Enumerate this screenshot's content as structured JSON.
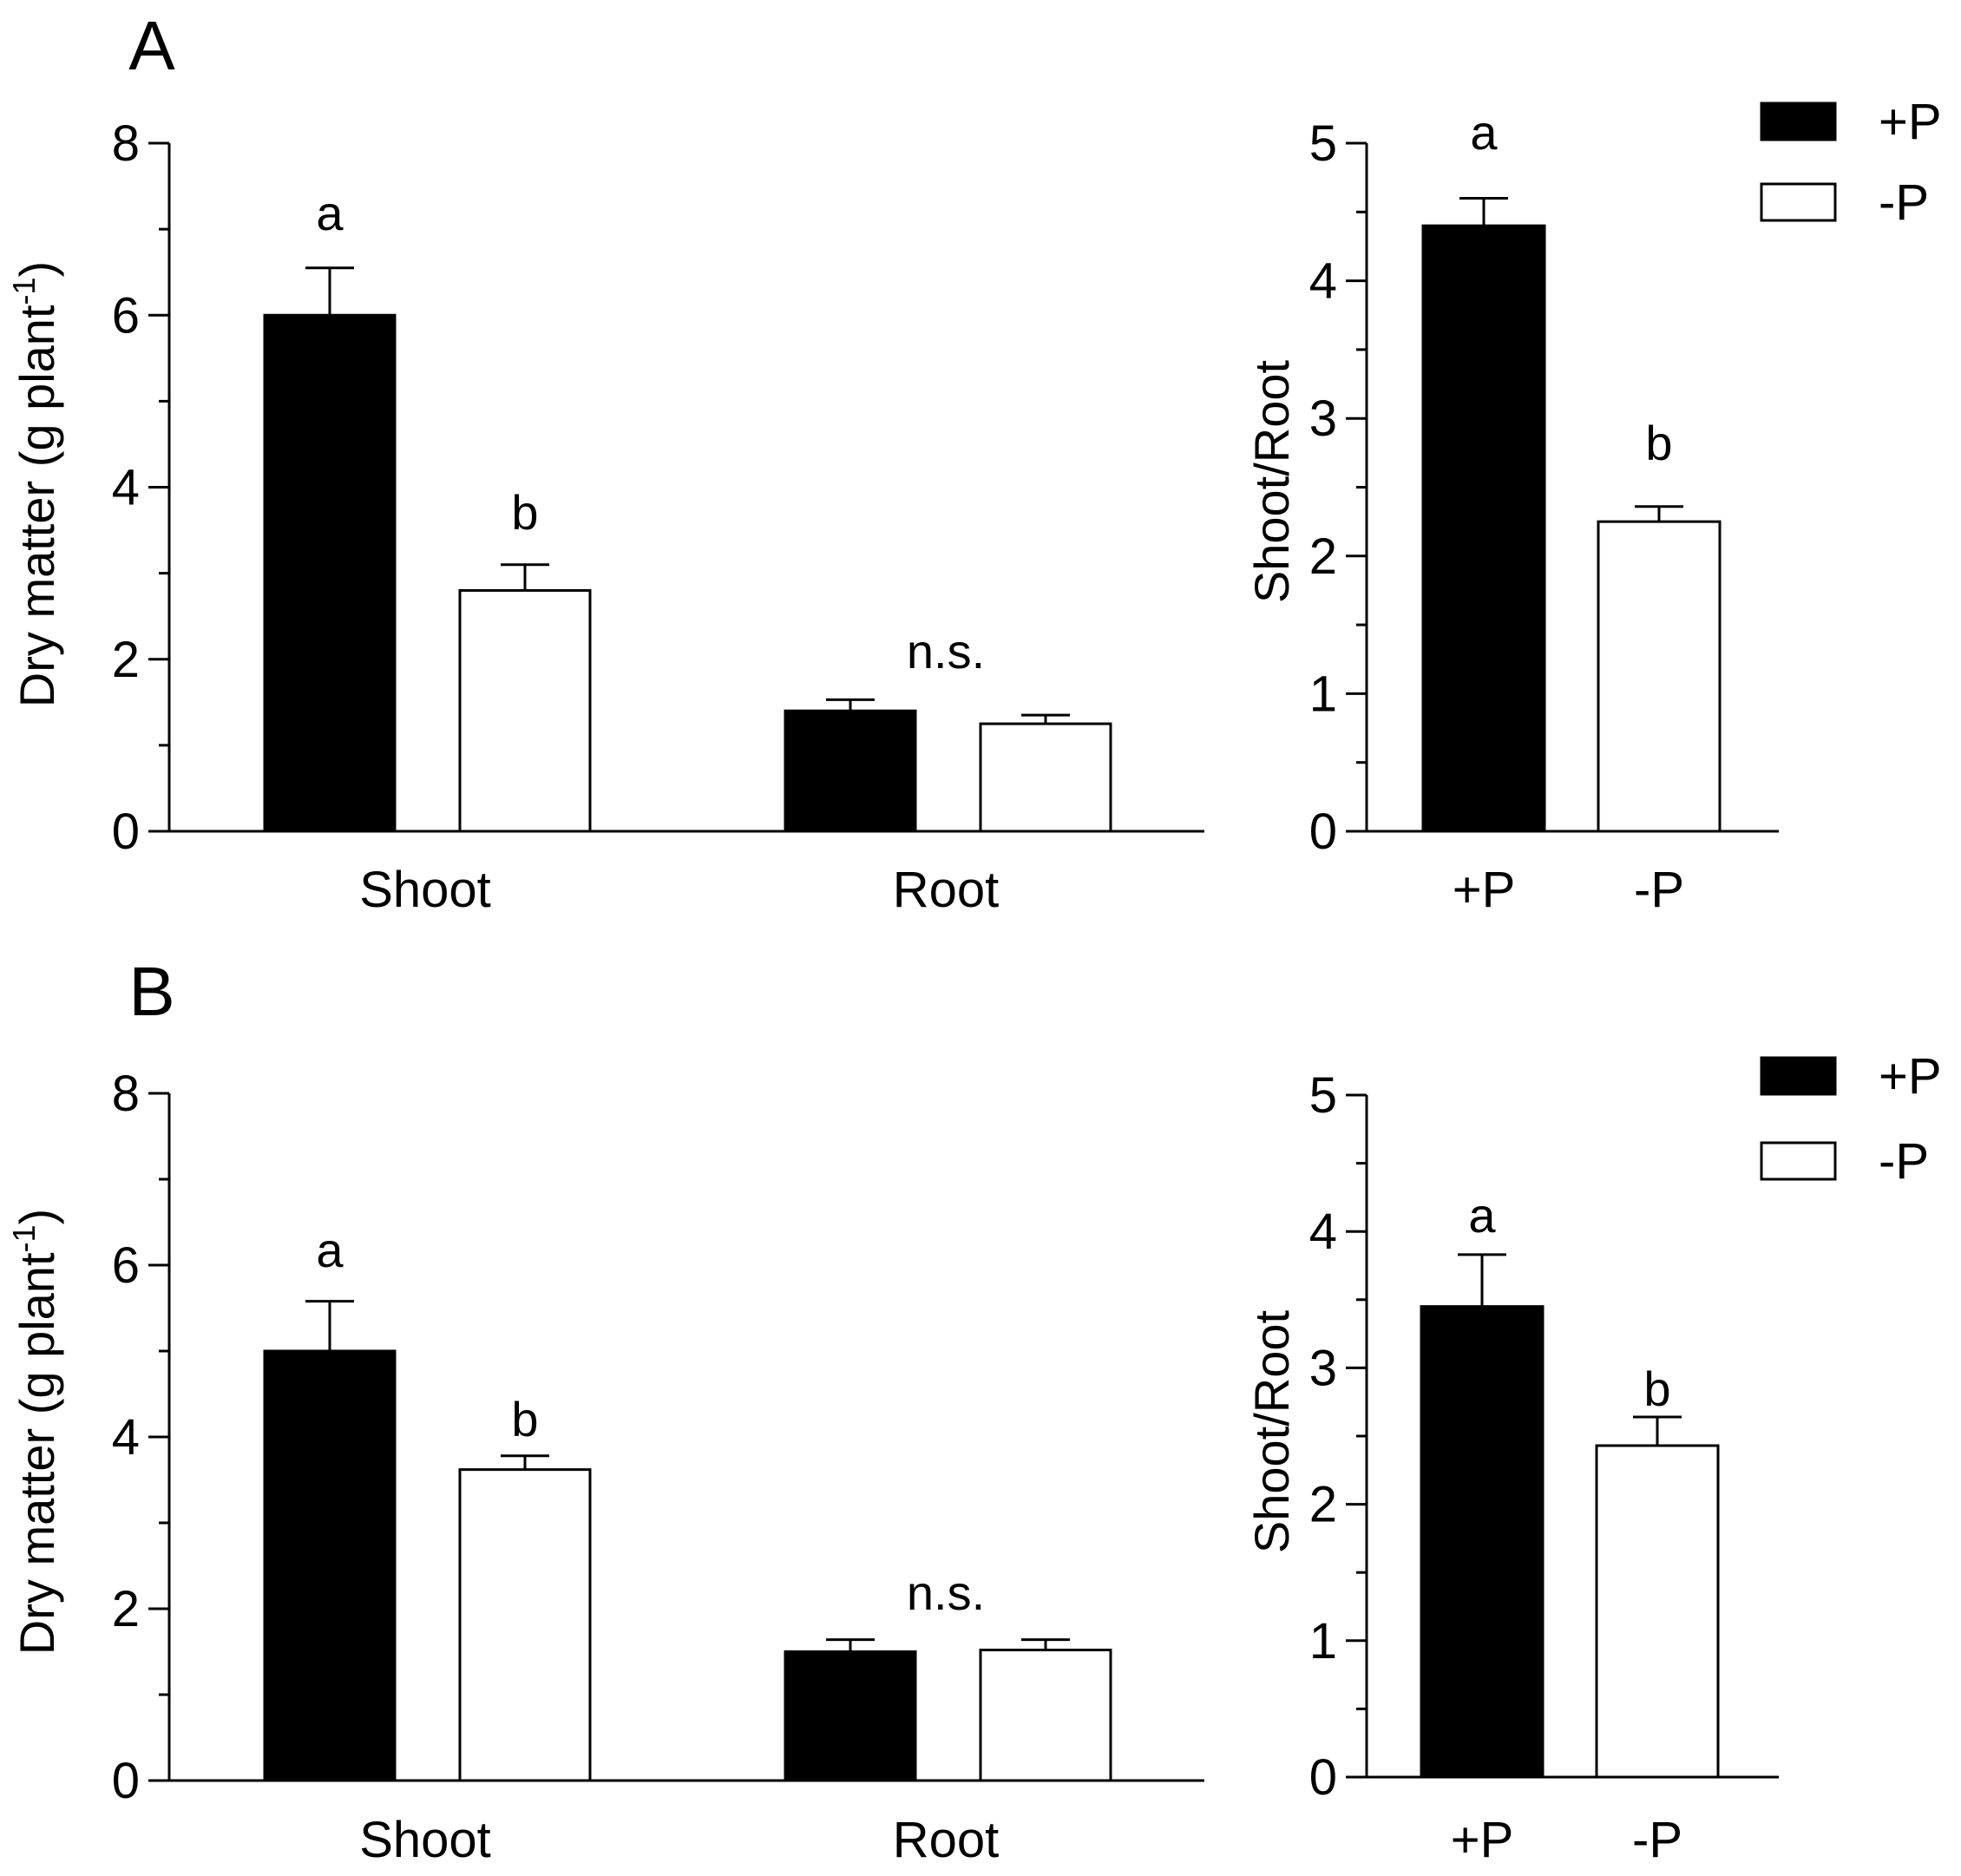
{
  "colors": {
    "plus_p": "#000000",
    "minus_p": "#ffffff",
    "stroke": "#000000"
  },
  "legend": {
    "labels": [
      "+P",
      "-P"
    ]
  },
  "chart_data": [
    {
      "panel_label": "A",
      "type": "bar",
      "title": "",
      "ylabel": "Dry matter (g plant",
      "ylabel_superscript": "-1",
      "ylabel_close": ")",
      "ylim": [
        0,
        8
      ],
      "yticks": [
        "0",
        "2",
        "4",
        "6",
        "8"
      ],
      "categories": [
        "Shoot",
        "Root"
      ],
      "series": [
        {
          "name": "+P",
          "values": [
            6.0,
            1.4
          ],
          "errors": [
            0.55,
            0.13
          ]
        },
        {
          "name": "-P",
          "values": [
            2.8,
            1.25
          ],
          "errors": [
            0.3,
            0.1
          ]
        }
      ],
      "annotations": [
        {
          "category": 0,
          "series": 0,
          "text": "a"
        },
        {
          "category": 0,
          "series": 1,
          "text": "b"
        },
        {
          "category": 1,
          "text": "n.s."
        }
      ]
    },
    {
      "panel_label": "",
      "type": "bar",
      "title": "",
      "ylabel": "Shoot/Root",
      "ylim": [
        0,
        5
      ],
      "yticks": [
        "0",
        "1",
        "2",
        "3",
        "4",
        "5"
      ],
      "categories": [
        "+P",
        "-P"
      ],
      "series": [
        {
          "name": "Shoot/Root",
          "values": [
            4.4,
            2.25
          ],
          "errors": [
            0.2,
            0.11
          ]
        }
      ],
      "annotations": [
        {
          "category": 0,
          "text": "a"
        },
        {
          "category": 1,
          "text": "b"
        }
      ],
      "legend": "top-right"
    },
    {
      "panel_label": "B",
      "type": "bar",
      "title": "",
      "ylabel": "Dry matter (g plant",
      "ylabel_superscript": "-1",
      "ylabel_close": ")",
      "ylim": [
        0,
        8
      ],
      "yticks": [
        "0",
        "2",
        "4",
        "6",
        "8"
      ],
      "categories": [
        "Shoot",
        "Root"
      ],
      "series": [
        {
          "name": "+P",
          "values": [
            5.0,
            1.5
          ],
          "errors": [
            0.58,
            0.14
          ]
        },
        {
          "name": "-P",
          "values": [
            3.62,
            1.52
          ],
          "errors": [
            0.16,
            0.12
          ]
        }
      ],
      "annotations": [
        {
          "category": 0,
          "series": 0,
          "text": "a"
        },
        {
          "category": 0,
          "series": 1,
          "text": "b"
        },
        {
          "category": 1,
          "text": "n.s."
        }
      ]
    },
    {
      "panel_label": "",
      "type": "bar",
      "title": "",
      "ylabel": "Shoot/Root",
      "ylim": [
        0,
        5
      ],
      "yticks": [
        "0",
        "1",
        "2",
        "3",
        "4",
        "5"
      ],
      "categories": [
        "+P",
        "-P"
      ],
      "series": [
        {
          "name": "Shoot/Root",
          "values": [
            3.45,
            2.43
          ],
          "errors": [
            0.38,
            0.21
          ]
        }
      ],
      "annotations": [
        {
          "category": 0,
          "text": "a"
        },
        {
          "category": 1,
          "text": "b"
        }
      ],
      "legend": "top-right"
    }
  ]
}
